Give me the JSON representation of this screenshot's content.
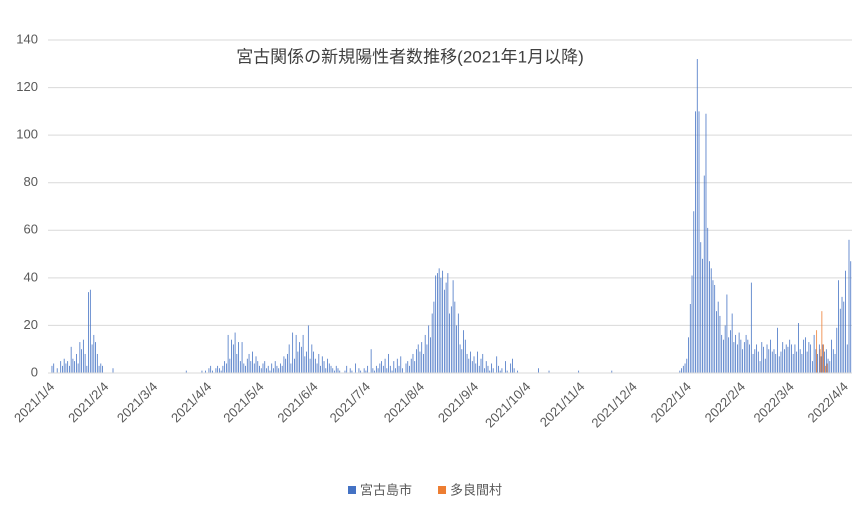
{
  "chart_data": {
    "type": "bar",
    "title": "宮古関係の新規陽性者数推移(2021年1月以降)",
    "categories": [
      "2021/1/4",
      null,
      null,
      null,
      null,
      null,
      null,
      null,
      null,
      null,
      null,
      null,
      null,
      null,
      null,
      null,
      null,
      null,
      null,
      null,
      null,
      null,
      null,
      null,
      null,
      null,
      null,
      null,
      null,
      null,
      null,
      "2021/2/4",
      null,
      null,
      null,
      null,
      null,
      null,
      null,
      null,
      null,
      null,
      null,
      null,
      null,
      null,
      null,
      null,
      null,
      null,
      null,
      null,
      null,
      null,
      null,
      null,
      null,
      null,
      null,
      "2021/3/4",
      null,
      null,
      null,
      null,
      null,
      null,
      null,
      null,
      null,
      null,
      null,
      null,
      null,
      null,
      null,
      null,
      null,
      null,
      null,
      null,
      null,
      null,
      null,
      null,
      null,
      null,
      null,
      null,
      null,
      null,
      "2021/4/4",
      null,
      null,
      null,
      null,
      null,
      null,
      null,
      null,
      null,
      null,
      null,
      null,
      null,
      null,
      null,
      null,
      null,
      null,
      null,
      null,
      null,
      null,
      null,
      null,
      null,
      null,
      null,
      null,
      null,
      "2021/5/4",
      null,
      null,
      null,
      null,
      null,
      null,
      null,
      null,
      null,
      null,
      null,
      null,
      null,
      null,
      null,
      null,
      null,
      null,
      null,
      null,
      null,
      null,
      null,
      null,
      null,
      null,
      null,
      null,
      null,
      null,
      "2021/6/4",
      null,
      null,
      null,
      null,
      null,
      null,
      null,
      null,
      null,
      null,
      null,
      null,
      null,
      null,
      null,
      null,
      null,
      null,
      null,
      null,
      null,
      null,
      null,
      null,
      null,
      null,
      null,
      null,
      null,
      "2021/7/4",
      null,
      null,
      null,
      null,
      null,
      null,
      null,
      null,
      null,
      null,
      null,
      null,
      null,
      null,
      null,
      null,
      null,
      null,
      null,
      null,
      null,
      null,
      null,
      null,
      null,
      null,
      null,
      null,
      null,
      null,
      "2021/8/4",
      null,
      null,
      null,
      null,
      null,
      null,
      null,
      null,
      null,
      null,
      null,
      null,
      null,
      null,
      null,
      null,
      null,
      null,
      null,
      null,
      null,
      null,
      null,
      null,
      null,
      null,
      null,
      null,
      null,
      null,
      "2021/9/4",
      null,
      null,
      null,
      null,
      null,
      null,
      null,
      null,
      null,
      null,
      null,
      null,
      null,
      null,
      null,
      null,
      null,
      null,
      null,
      null,
      null,
      null,
      null,
      null,
      null,
      null,
      null,
      null,
      null,
      "2021/10/4",
      null,
      null,
      null,
      null,
      null,
      null,
      null,
      null,
      null,
      null,
      null,
      null,
      null,
      null,
      null,
      null,
      null,
      null,
      null,
      null,
      null,
      null,
      null,
      null,
      null,
      null,
      null,
      null,
      null,
      null,
      "2021/11/4",
      null,
      null,
      null,
      null,
      null,
      null,
      null,
      null,
      null,
      null,
      null,
      null,
      null,
      null,
      null,
      null,
      null,
      null,
      null,
      null,
      null,
      null,
      null,
      null,
      null,
      null,
      null,
      null,
      null,
      "2021/12/4",
      null,
      null,
      null,
      null,
      null,
      null,
      null,
      null,
      null,
      null,
      null,
      null,
      null,
      null,
      null,
      null,
      null,
      null,
      null,
      null,
      null,
      null,
      null,
      null,
      null,
      null,
      null,
      null,
      null,
      null,
      "2022/1/4",
      null,
      null,
      null,
      null,
      null,
      null,
      null,
      null,
      null,
      null,
      null,
      null,
      null,
      null,
      null,
      null,
      null,
      null,
      null,
      null,
      null,
      null,
      null,
      null,
      null,
      null,
      null,
      null,
      null,
      null,
      "2022/2/4",
      null,
      null,
      null,
      null,
      null,
      null,
      null,
      null,
      null,
      null,
      null,
      null,
      null,
      null,
      null,
      null,
      null,
      null,
      null,
      null,
      null,
      null,
      null,
      null,
      null,
      null,
      null,
      "2022/3/4",
      null,
      null,
      null,
      null,
      null,
      null,
      null,
      null,
      null,
      null,
      null,
      null,
      null,
      null,
      null,
      null,
      null,
      null,
      null,
      null,
      null,
      null,
      null,
      null,
      null,
      null,
      null,
      null,
      null,
      null,
      "2022/4/4",
      null,
      null,
      null,
      null,
      null
    ],
    "series": [
      {
        "name": "宮古島市",
        "color": "#4472c4",
        "values": [
          0,
          0,
          3,
          4,
          0,
          2,
          0,
          5,
          3,
          6,
          4,
          5,
          3,
          11,
          6,
          5,
          8,
          4,
          13,
          10,
          14,
          8,
          3,
          34,
          35,
          12,
          16,
          13,
          8,
          3,
          4,
          3,
          0,
          0,
          0,
          0,
          0,
          2,
          0,
          0,
          0,
          0,
          0,
          0,
          0,
          0,
          0,
          0,
          0,
          0,
          0,
          0,
          0,
          0,
          0,
          0,
          0,
          0,
          0,
          0,
          0,
          0,
          0,
          0,
          0,
          0,
          0,
          0,
          0,
          0,
          0,
          0,
          0,
          0,
          0,
          0,
          0,
          0,
          0,
          1,
          0,
          0,
          0,
          0,
          0,
          0,
          0,
          0,
          1,
          0,
          1,
          0,
          2,
          3,
          1,
          0,
          2,
          3,
          2,
          1,
          3,
          5,
          4,
          16,
          6,
          14,
          12,
          17,
          8,
          13,
          5,
          13,
          4,
          3,
          6,
          8,
          5,
          9,
          4,
          7,
          5,
          3,
          2,
          4,
          5,
          2,
          3,
          1,
          4,
          2,
          5,
          3,
          2,
          4,
          3,
          7,
          6,
          8,
          12,
          4,
          17,
          6,
          16,
          9,
          13,
          11,
          16,
          7,
          9,
          20,
          6,
          12,
          9,
          6,
          4,
          8,
          3,
          7,
          5,
          2,
          6,
          4,
          3,
          2,
          1,
          3,
          2,
          1,
          0,
          0,
          1,
          3,
          0,
          2,
          1,
          0,
          4,
          0,
          2,
          1,
          0,
          2,
          1,
          3,
          0,
          10,
          2,
          1,
          3,
          2,
          4,
          5,
          3,
          6,
          2,
          8,
          3,
          1,
          5,
          2,
          6,
          3,
          7,
          2,
          0,
          4,
          5,
          3,
          6,
          8,
          5,
          10,
          12,
          9,
          13,
          8,
          16,
          12,
          20,
          15,
          25,
          30,
          41,
          42,
          44,
          40,
          43,
          35,
          38,
          42,
          25,
          28,
          39,
          30,
          20,
          25,
          12,
          10,
          18,
          14,
          8,
          6,
          9,
          5,
          7,
          4,
          9,
          3,
          6,
          8,
          2,
          5,
          3,
          1,
          4,
          2,
          0,
          7,
          3,
          1,
          2,
          0,
          5,
          1,
          0,
          4,
          6,
          2,
          0,
          1,
          0,
          0,
          0,
          0,
          0,
          0,
          0,
          0,
          0,
          0,
          0,
          2,
          0,
          0,
          0,
          0,
          0,
          1,
          0,
          0,
          0,
          0,
          0,
          0,
          0,
          0,
          0,
          0,
          0,
          0,
          0,
          0,
          0,
          0,
          1,
          0,
          0,
          0,
          0,
          0,
          0,
          0,
          0,
          0,
          0,
          0,
          0,
          0,
          0,
          0,
          0,
          0,
          0,
          1,
          0,
          0,
          0,
          0,
          0,
          0,
          0,
          0,
          0,
          0,
          0,
          0,
          0,
          0,
          0,
          0,
          0,
          0,
          0,
          0,
          0,
          0,
          0,
          0,
          0,
          0,
          0,
          0,
          0,
          0,
          0,
          0,
          0,
          0,
          0,
          0,
          0,
          0,
          1,
          2,
          3,
          4,
          6,
          15,
          29,
          41,
          68,
          110,
          132,
          110,
          55,
          48,
          83,
          109,
          61,
          47,
          44,
          39,
          37,
          26,
          30,
          24,
          16,
          14,
          20,
          33,
          15,
          18,
          25,
          13,
          16,
          12,
          17,
          14,
          10,
          13,
          16,
          14,
          12,
          38,
          8,
          10,
          12,
          9,
          5,
          13,
          11,
          6,
          12,
          10,
          14,
          9,
          10,
          8,
          19,
          7,
          9,
          13,
          10,
          12,
          11,
          14,
          12,
          8,
          12,
          9,
          21,
          10,
          8,
          14,
          15,
          9,
          13,
          12,
          5,
          16,
          10,
          8,
          12,
          7,
          12,
          9,
          10,
          6,
          5,
          14,
          10,
          8,
          19,
          39,
          27,
          32,
          30,
          43,
          12,
          56,
          47
        ]
      },
      {
        "name": "多良間村",
        "color": "#ed7d31",
        "values": [
          0,
          0,
          0,
          0,
          0,
          0,
          0,
          0,
          0,
          0,
          0,
          0,
          0,
          0,
          0,
          0,
          0,
          0,
          0,
          0,
          0,
          0,
          0,
          0,
          0,
          0,
          0,
          0,
          0,
          0,
          0,
          0,
          0,
          0,
          0,
          0,
          0,
          0,
          0,
          0,
          0,
          0,
          0,
          0,
          0,
          0,
          0,
          0,
          0,
          0,
          0,
          0,
          0,
          0,
          0,
          0,
          0,
          0,
          0,
          0,
          0,
          0,
          0,
          0,
          0,
          0,
          0,
          0,
          0,
          0,
          0,
          0,
          0,
          0,
          0,
          0,
          0,
          0,
          0,
          0,
          0,
          0,
          0,
          0,
          0,
          0,
          0,
          0,
          0,
          0,
          0,
          0,
          0,
          0,
          0,
          0,
          0,
          0,
          0,
          0,
          0,
          0,
          0,
          0,
          0,
          0,
          0,
          0,
          0,
          0,
          0,
          0,
          0,
          0,
          0,
          0,
          0,
          0,
          0,
          0,
          0,
          0,
          0,
          0,
          0,
          0,
          0,
          0,
          0,
          0,
          0,
          0,
          0,
          0,
          0,
          0,
          0,
          0,
          0,
          0,
          0,
          0,
          0,
          0,
          0,
          0,
          0,
          0,
          0,
          0,
          0,
          0,
          0,
          0,
          0,
          0,
          0,
          0,
          0,
          0,
          0,
          0,
          0,
          0,
          0,
          0,
          0,
          0,
          0,
          0,
          0,
          0,
          0,
          0,
          0,
          0,
          0,
          0,
          0,
          0,
          0,
          0,
          0,
          0,
          0,
          0,
          0,
          0,
          0,
          0,
          0,
          0,
          0,
          0,
          0,
          0,
          0,
          0,
          0,
          0,
          0,
          0,
          0,
          0,
          0,
          0,
          0,
          0,
          0,
          0,
          0,
          0,
          0,
          0,
          0,
          0,
          0,
          0,
          0,
          0,
          0,
          0,
          0,
          0,
          0,
          0,
          0,
          0,
          0,
          0,
          0,
          0,
          0,
          0,
          0,
          0,
          0,
          0,
          0,
          0,
          0,
          0,
          0,
          0,
          0,
          0,
          0,
          0,
          0,
          0,
          0,
          0,
          0,
          0,
          0,
          0,
          0,
          0,
          0,
          0,
          0,
          0,
          0,
          0,
          0,
          0,
          0,
          0,
          0,
          0,
          0,
          0,
          0,
          0,
          0,
          0,
          0,
          0,
          0,
          0,
          0,
          0,
          0,
          0,
          0,
          0,
          0,
          0,
          0,
          0,
          0,
          0,
          0,
          0,
          0,
          0,
          0,
          0,
          0,
          0,
          0,
          0,
          0,
          0,
          0,
          0,
          0,
          0,
          0,
          0,
          0,
          0,
          0,
          0,
          0,
          0,
          0,
          0,
          0,
          0,
          0,
          0,
          0,
          0,
          0,
          0,
          0,
          0,
          0,
          0,
          0,
          0,
          0,
          0,
          0,
          0,
          0,
          0,
          0,
          0,
          0,
          0,
          0,
          0,
          0,
          0,
          0,
          0,
          0,
          0,
          0,
          0,
          0,
          0,
          0,
          0,
          0,
          0,
          0,
          0,
          0,
          0,
          0,
          0,
          0,
          0,
          0,
          0,
          0,
          0,
          0,
          0,
          0,
          0,
          0,
          0,
          0,
          0,
          0,
          0,
          0,
          0,
          0,
          0,
          0,
          0,
          0,
          0,
          0,
          0,
          0,
          0,
          0,
          0,
          0,
          0,
          0,
          0,
          0,
          0,
          0,
          0,
          0,
          0,
          0,
          0,
          0,
          0,
          0,
          0,
          0,
          0,
          0,
          0,
          0,
          0,
          0,
          0,
          0,
          0,
          0,
          0,
          0,
          0,
          0,
          0,
          0,
          0,
          0,
          0,
          0,
          0,
          0,
          0,
          0,
          0,
          0,
          0,
          0,
          0,
          18,
          0,
          10,
          26,
          12,
          3,
          4,
          0,
          0,
          0,
          0,
          0,
          0,
          0,
          0,
          0,
          0,
          0,
          0,
          0,
          0
        ]
      }
    ],
    "ylim": [
      0,
      140
    ],
    "yticks": [
      0,
      20,
      40,
      60,
      80,
      100,
      120,
      140
    ],
    "grid": true,
    "legend": "bottom"
  }
}
